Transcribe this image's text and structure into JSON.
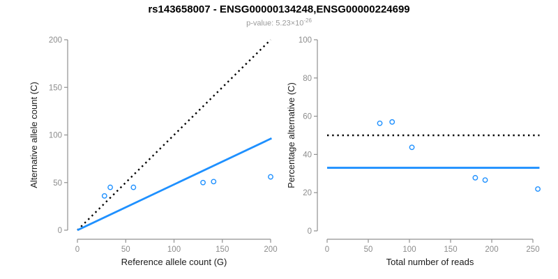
{
  "header": {
    "title": "rs143658007 - ENSG00000134248,ENSG00000224699",
    "subtitle_label": "p-value: ",
    "subtitle_mantissa": "5.23×10",
    "subtitle_exponent": "-26"
  },
  "colors": {
    "accent_blue": "#1E90FF",
    "identity_black": "#000000",
    "axis_gray": "#909090",
    "tick_label_gray": "#8c8c8c",
    "axis_title_dark": "#1a1a1a",
    "subtitle_gray": "#9a9a9a",
    "background": "#ffffff"
  },
  "chart_data": [
    {
      "name": "allele-counts-scatter",
      "type": "scatter",
      "xlabel": "Reference allele count (G)",
      "ylabel": "Alternative allele count (C)",
      "xlim": [
        0,
        200
      ],
      "ylim": [
        0,
        200
      ],
      "xticks": [
        0,
        50,
        100,
        150,
        200
      ],
      "yticks": [
        0,
        50,
        100,
        150,
        200
      ],
      "grid": false,
      "legend": null,
      "points": [
        [
          28,
          36
        ],
        [
          34,
          45
        ],
        [
          58,
          45
        ],
        [
          130,
          50
        ],
        [
          141,
          51
        ],
        [
          200,
          56
        ]
      ],
      "lines": [
        {
          "name": "identity-line",
          "style": "dotted",
          "color": "#000000",
          "from": [
            0,
            0
          ],
          "to": [
            200,
            200
          ]
        },
        {
          "name": "regression-line",
          "style": "solid",
          "color": "#1E90FF",
          "from": [
            0,
            0
          ],
          "to": [
            201,
            96.5
          ]
        }
      ]
    },
    {
      "name": "percentage-alternative-scatter",
      "type": "scatter",
      "xlabel": "Total number of reads",
      "ylabel": "Percentage alternative (C)",
      "xlim": [
        0,
        258
      ],
      "ylim": [
        0,
        100
      ],
      "xticks": [
        0,
        50,
        100,
        150,
        200,
        250
      ],
      "yticks": [
        0,
        20,
        40,
        60,
        80,
        100
      ],
      "grid": false,
      "legend": null,
      "points": [
        [
          64,
          56.3
        ],
        [
          79,
          57
        ],
        [
          103,
          43.7
        ],
        [
          180,
          27.8
        ],
        [
          192,
          26.6
        ],
        [
          256,
          21.9
        ]
      ],
      "lines": [
        {
          "name": "fifty-percent-line",
          "style": "dotted",
          "color": "#000000",
          "from": [
            0,
            50
          ],
          "to": [
            258,
            50
          ]
        },
        {
          "name": "mean-percentage-line",
          "style": "solid",
          "color": "#1E90FF",
          "from": [
            0,
            33
          ],
          "to": [
            258,
            33
          ]
        }
      ]
    }
  ]
}
